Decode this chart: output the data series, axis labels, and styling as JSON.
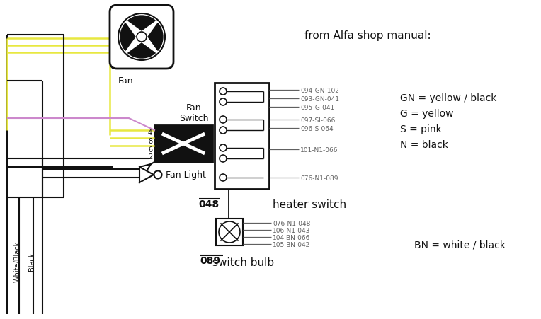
{
  "title": "from Alfa shop manual:",
  "fan_label": "Fan",
  "fan_switch_label": "Fan\nSwitch",
  "fan_light_label": "Fan Light",
  "wb_label": "White/Black",
  "b_label": "Black",
  "heater_label": "heater switch",
  "bulb_label": "switch bulb",
  "lbl_048": "048",
  "lbl_089": "089",
  "h_wires": [
    "094-GN-102",
    "093-GN-041",
    "095-G-041",
    "097-SI-066",
    "096-S-064",
    "101-N1-066",
    "076-N1-089"
  ],
  "b_top": [
    "076-N1-048",
    "106-N1-043"
  ],
  "b_bot": [
    "104-BN-066",
    "105-BN-042"
  ],
  "legend": [
    "GN = yellow / black",
    "G = yellow",
    "S = pink",
    "N = black"
  ],
  "bn_legend": "BN = white / black",
  "yellow": "#e8e840",
  "pink": "#cc88cc",
  "gray": "#888888",
  "black": "#111111",
  "white": "#ffffff",
  "darkgray": "#606060"
}
